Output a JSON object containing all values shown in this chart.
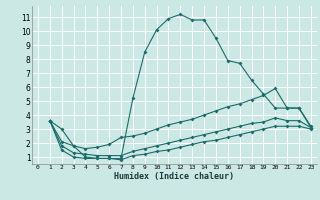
{
  "xlabel": "Humidex (Indice chaleur)",
  "bg_color": "#cce8e4",
  "grid_color": "#ffffff",
  "line_color": "#1a6b6b",
  "xlim": [
    -0.5,
    23.5
  ],
  "ylim": [
    0.5,
    11.8
  ],
  "xticks": [
    0,
    1,
    2,
    3,
    4,
    5,
    6,
    7,
    8,
    9,
    10,
    11,
    12,
    13,
    14,
    15,
    16,
    17,
    18,
    19,
    20,
    21,
    22,
    23
  ],
  "yticks": [
    1,
    2,
    3,
    4,
    5,
    6,
    7,
    8,
    9,
    10,
    11
  ],
  "line1_x": [
    1,
    2,
    3,
    4,
    5,
    6,
    7,
    8,
    9,
    10,
    11,
    12,
    13,
    14,
    15,
    16,
    17,
    18,
    19,
    20,
    21,
    22,
    23
  ],
  "line1_y": [
    3.6,
    3.0,
    1.8,
    1.0,
    0.9,
    0.9,
    0.9,
    5.2,
    8.5,
    10.1,
    10.9,
    11.2,
    10.8,
    10.8,
    9.5,
    7.9,
    7.7,
    6.5,
    5.5,
    4.5,
    4.5,
    4.5,
    3.2
  ],
  "line2_x": [
    1,
    2,
    3,
    4,
    5,
    6,
    7,
    8,
    9,
    10,
    11,
    12,
    13,
    14,
    15,
    16,
    17,
    18,
    19,
    20,
    21,
    22,
    23
  ],
  "line2_y": [
    3.6,
    2.1,
    1.8,
    1.6,
    1.7,
    1.9,
    2.4,
    2.5,
    2.7,
    3.0,
    3.3,
    3.5,
    3.7,
    4.0,
    4.3,
    4.6,
    4.8,
    5.1,
    5.4,
    5.9,
    4.5,
    4.5,
    3.1
  ],
  "line3_x": [
    1,
    2,
    3,
    4,
    5,
    6,
    7,
    8,
    9,
    10,
    11,
    12,
    13,
    14,
    15,
    16,
    17,
    18,
    19,
    20,
    21,
    22,
    23
  ],
  "line3_y": [
    3.6,
    1.8,
    1.3,
    1.2,
    1.1,
    1.1,
    1.1,
    1.4,
    1.6,
    1.8,
    2.0,
    2.2,
    2.4,
    2.6,
    2.8,
    3.0,
    3.2,
    3.4,
    3.5,
    3.8,
    3.6,
    3.6,
    3.1
  ],
  "line4_x": [
    1,
    2,
    3,
    4,
    5,
    6,
    7,
    8,
    9,
    10,
    11,
    12,
    13,
    14,
    15,
    16,
    17,
    18,
    19,
    20,
    21,
    22,
    23
  ],
  "line4_y": [
    3.6,
    1.5,
    1.0,
    0.9,
    0.9,
    0.9,
    0.8,
    1.1,
    1.2,
    1.4,
    1.5,
    1.7,
    1.9,
    2.1,
    2.2,
    2.4,
    2.6,
    2.8,
    3.0,
    3.2,
    3.2,
    3.2,
    3.0
  ]
}
